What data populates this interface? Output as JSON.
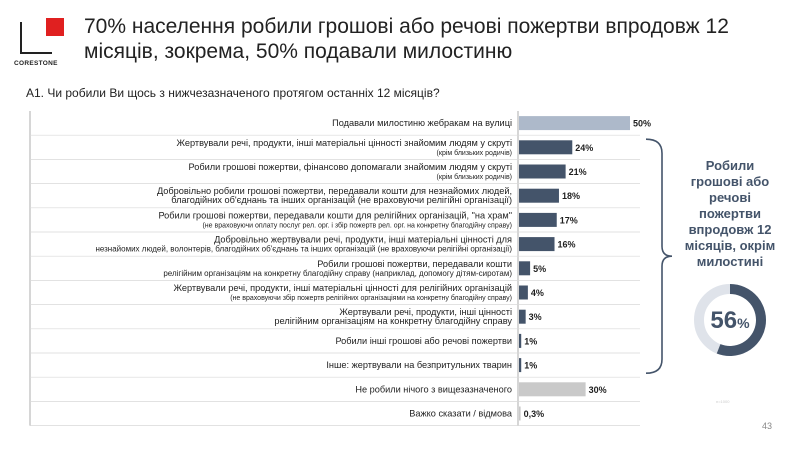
{
  "logo": {
    "text": "CORESTONE",
    "accent_color": "#e02020"
  },
  "title": "70% населення робили грошові або речові пожертви впродовж 12 місяців, зокрема, 50% подавали милостиню",
  "question": "А1. Чи робили Ви щось з нижчезазначеного протягом останніх 12 місяців?",
  "side_summary": {
    "text": "Робили грошові або речові пожертви впродовж 12 місяців, окрім милостині",
    "value_number": "56",
    "value_suffix": "%",
    "fraction": 0.56,
    "color": "#44546a",
    "track_color": "#dfe3ea"
  },
  "footnote": "n=1000",
  "page_number": "43",
  "chart_data": {
    "type": "bar",
    "orientation": "horizontal",
    "xlim": [
      0,
      50
    ],
    "colors": {
      "main": "#44546a",
      "light": "#adb9ca",
      "grey": "#c9c9c9"
    },
    "items": [
      {
        "label": "Подавали милостиню жебракам на вулиці",
        "note": "",
        "value": 50,
        "value_label": "50%",
        "color": "light"
      },
      {
        "label": "Жертвували речі, продукти, інші матеріальні цінності знайомим людям у скруті",
        "note": "(крім близьких родичів)",
        "value": 24,
        "value_label": "24%",
        "color": "main"
      },
      {
        "label": "Робили грошові пожертви, фінансово допомагали знайомим людям у скруті",
        "note": "(крім близьких родичів)",
        "value": 21,
        "value_label": "21%",
        "color": "main"
      },
      {
        "label": "Добровільно робили грошові пожертви, передавали кошти для незнайомих людей, благодійних об'єднань та інших організацій (не враховуючи релігійні організації)",
        "note": "",
        "value": 18,
        "value_label": "18%",
        "color": "main"
      },
      {
        "label": "Робили грошові пожертви, передавали кошти для релігійних організацій, \"на храм\"",
        "note": "(не враховуючи оплату послуг рел. орг. і збір пожертв рел. орг. на конкретну благодійну справу)",
        "value": 17,
        "value_label": "17%",
        "color": "main"
      },
      {
        "label": "Добровільно жертвували речі, продукти, інші матеріальні цінності для незнайомих людей, волонтерів, благодійних об'єднань та інших організацій",
        "note": "(не враховуючи релігійні організації)",
        "value": 16,
        "value_label": "16%",
        "color": "main"
      },
      {
        "label": "Робили грошові пожертви, передавали кошти релігійним організаціям на конкретну благодійну справу",
        "note": "(наприклад, допомогу дітям-сиротам)",
        "value": 5,
        "value_label": "5%",
        "color": "main"
      },
      {
        "label": "Жертвували речі, продукти, інші матеріальні цінності для релігійних організацій",
        "note": "(не враховуючи збір пожертв релігійних організаціями на конкретну благодійну справу)",
        "value": 4,
        "value_label": "4%",
        "color": "main"
      },
      {
        "label": "Жертвували речі, продукти, інші цінності релігійним організаціям на конкретну благодійну справу",
        "note": "",
        "value": 3,
        "value_label": "3%",
        "color": "main"
      },
      {
        "label": "Робили інші грошові або речові пожертви",
        "note": "",
        "value": 1,
        "value_label": "1%",
        "color": "main"
      },
      {
        "label": "Інше: жертвували на безпритульних тварин",
        "note": "",
        "value": 1,
        "value_label": "1%",
        "color": "main"
      },
      {
        "label": "Не робили нічого з вищезазначеного",
        "note": "",
        "value": 30,
        "value_label": "30%",
        "color": "grey"
      },
      {
        "label": "Важко сказати / відмова",
        "note": "",
        "value": 0.3,
        "value_label": "0,3%",
        "color": "grey"
      }
    ]
  }
}
